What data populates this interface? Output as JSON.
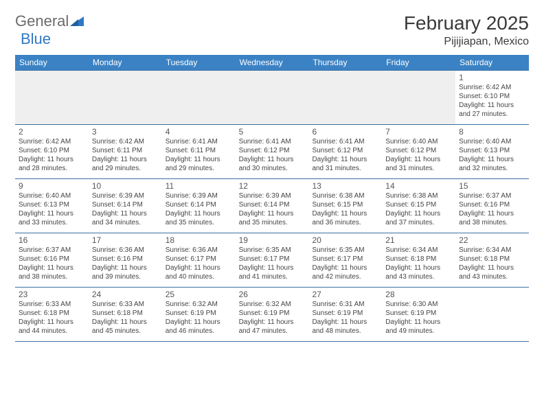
{
  "logo": {
    "text1": "General",
    "text2": "Blue"
  },
  "title": "February 2025",
  "location": "Pijijiapan, Mexico",
  "colors": {
    "header_bg": "#3b82c4",
    "header_text": "#ffffff",
    "rule": "#3b6fa0",
    "shade": "#efefef",
    "body_text": "#444444",
    "daynum": "#555555",
    "logo_gray": "#6b6b6b",
    "logo_blue": "#2f78c2"
  },
  "day_headers": [
    "Sunday",
    "Monday",
    "Tuesday",
    "Wednesday",
    "Thursday",
    "Friday",
    "Saturday"
  ],
  "weeks": [
    [
      {
        "blank": true,
        "shaded": true
      },
      {
        "blank": true,
        "shaded": true
      },
      {
        "blank": true,
        "shaded": true
      },
      {
        "blank": true,
        "shaded": true
      },
      {
        "blank": true,
        "shaded": true
      },
      {
        "blank": true,
        "shaded": true
      },
      {
        "day": "1",
        "sunrise": "Sunrise: 6:42 AM",
        "sunset": "Sunset: 6:10 PM",
        "daylight": "Daylight: 11 hours and 27 minutes."
      }
    ],
    [
      {
        "day": "2",
        "sunrise": "Sunrise: 6:42 AM",
        "sunset": "Sunset: 6:10 PM",
        "daylight": "Daylight: 11 hours and 28 minutes."
      },
      {
        "day": "3",
        "sunrise": "Sunrise: 6:42 AM",
        "sunset": "Sunset: 6:11 PM",
        "daylight": "Daylight: 11 hours and 29 minutes."
      },
      {
        "day": "4",
        "sunrise": "Sunrise: 6:41 AM",
        "sunset": "Sunset: 6:11 PM",
        "daylight": "Daylight: 11 hours and 29 minutes."
      },
      {
        "day": "5",
        "sunrise": "Sunrise: 6:41 AM",
        "sunset": "Sunset: 6:12 PM",
        "daylight": "Daylight: 11 hours and 30 minutes."
      },
      {
        "day": "6",
        "sunrise": "Sunrise: 6:41 AM",
        "sunset": "Sunset: 6:12 PM",
        "daylight": "Daylight: 11 hours and 31 minutes."
      },
      {
        "day": "7",
        "sunrise": "Sunrise: 6:40 AM",
        "sunset": "Sunset: 6:12 PM",
        "daylight": "Daylight: 11 hours and 31 minutes."
      },
      {
        "day": "8",
        "sunrise": "Sunrise: 6:40 AM",
        "sunset": "Sunset: 6:13 PM",
        "daylight": "Daylight: 11 hours and 32 minutes."
      }
    ],
    [
      {
        "day": "9",
        "sunrise": "Sunrise: 6:40 AM",
        "sunset": "Sunset: 6:13 PM",
        "daylight": "Daylight: 11 hours and 33 minutes."
      },
      {
        "day": "10",
        "sunrise": "Sunrise: 6:39 AM",
        "sunset": "Sunset: 6:14 PM",
        "daylight": "Daylight: 11 hours and 34 minutes."
      },
      {
        "day": "11",
        "sunrise": "Sunrise: 6:39 AM",
        "sunset": "Sunset: 6:14 PM",
        "daylight": "Daylight: 11 hours and 35 minutes."
      },
      {
        "day": "12",
        "sunrise": "Sunrise: 6:39 AM",
        "sunset": "Sunset: 6:14 PM",
        "daylight": "Daylight: 11 hours and 35 minutes."
      },
      {
        "day": "13",
        "sunrise": "Sunrise: 6:38 AM",
        "sunset": "Sunset: 6:15 PM",
        "daylight": "Daylight: 11 hours and 36 minutes."
      },
      {
        "day": "14",
        "sunrise": "Sunrise: 6:38 AM",
        "sunset": "Sunset: 6:15 PM",
        "daylight": "Daylight: 11 hours and 37 minutes."
      },
      {
        "day": "15",
        "sunrise": "Sunrise: 6:37 AM",
        "sunset": "Sunset: 6:16 PM",
        "daylight": "Daylight: 11 hours and 38 minutes."
      }
    ],
    [
      {
        "day": "16",
        "sunrise": "Sunrise: 6:37 AM",
        "sunset": "Sunset: 6:16 PM",
        "daylight": "Daylight: 11 hours and 38 minutes."
      },
      {
        "day": "17",
        "sunrise": "Sunrise: 6:36 AM",
        "sunset": "Sunset: 6:16 PM",
        "daylight": "Daylight: 11 hours and 39 minutes."
      },
      {
        "day": "18",
        "sunrise": "Sunrise: 6:36 AM",
        "sunset": "Sunset: 6:17 PM",
        "daylight": "Daylight: 11 hours and 40 minutes."
      },
      {
        "day": "19",
        "sunrise": "Sunrise: 6:35 AM",
        "sunset": "Sunset: 6:17 PM",
        "daylight": "Daylight: 11 hours and 41 minutes."
      },
      {
        "day": "20",
        "sunrise": "Sunrise: 6:35 AM",
        "sunset": "Sunset: 6:17 PM",
        "daylight": "Daylight: 11 hours and 42 minutes."
      },
      {
        "day": "21",
        "sunrise": "Sunrise: 6:34 AM",
        "sunset": "Sunset: 6:18 PM",
        "daylight": "Daylight: 11 hours and 43 minutes."
      },
      {
        "day": "22",
        "sunrise": "Sunrise: 6:34 AM",
        "sunset": "Sunset: 6:18 PM",
        "daylight": "Daylight: 11 hours and 43 minutes."
      }
    ],
    [
      {
        "day": "23",
        "sunrise": "Sunrise: 6:33 AM",
        "sunset": "Sunset: 6:18 PM",
        "daylight": "Daylight: 11 hours and 44 minutes."
      },
      {
        "day": "24",
        "sunrise": "Sunrise: 6:33 AM",
        "sunset": "Sunset: 6:18 PM",
        "daylight": "Daylight: 11 hours and 45 minutes."
      },
      {
        "day": "25",
        "sunrise": "Sunrise: 6:32 AM",
        "sunset": "Sunset: 6:19 PM",
        "daylight": "Daylight: 11 hours and 46 minutes."
      },
      {
        "day": "26",
        "sunrise": "Sunrise: 6:32 AM",
        "sunset": "Sunset: 6:19 PM",
        "daylight": "Daylight: 11 hours and 47 minutes."
      },
      {
        "day": "27",
        "sunrise": "Sunrise: 6:31 AM",
        "sunset": "Sunset: 6:19 PM",
        "daylight": "Daylight: 11 hours and 48 minutes."
      },
      {
        "day": "28",
        "sunrise": "Sunrise: 6:30 AM",
        "sunset": "Sunset: 6:19 PM",
        "daylight": "Daylight: 11 hours and 49 minutes."
      },
      {
        "blank": true
      }
    ]
  ]
}
